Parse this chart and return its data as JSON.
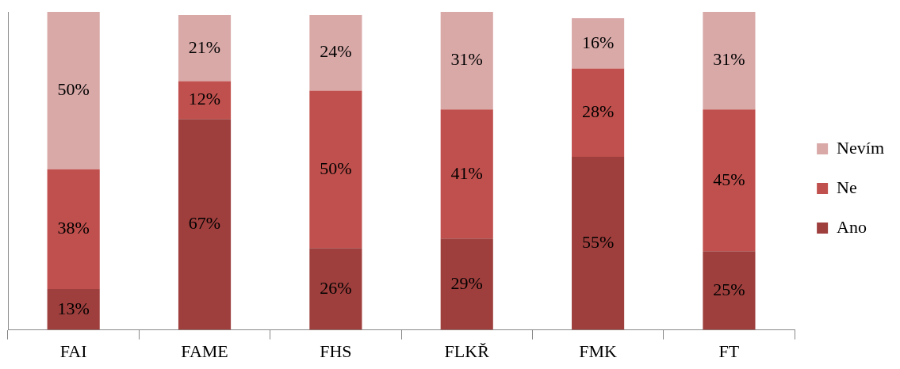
{
  "chart_data": {
    "type": "bar",
    "stacked": true,
    "categories": [
      "FAI",
      "FAME",
      "FHS",
      "FLKŘ",
      "FMK",
      "FT"
    ],
    "ylim": [
      0,
      101
    ],
    "tick_labels": "x",
    "grid": false,
    "legend": "right",
    "series": [
      {
        "name": "Ano",
        "color": "#9e3f3d",
        "values": [
          13,
          67,
          26,
          29,
          55,
          25
        ],
        "value_labels": [
          "13%",
          "67%",
          "26%",
          "29%",
          "55%",
          "25%"
        ]
      },
      {
        "name": "Ne",
        "color": "#c0504d",
        "values": [
          38,
          12,
          50,
          41,
          28,
          45
        ],
        "value_labels": [
          "38%",
          "12%",
          "50%",
          "41%",
          "28%",
          "45%"
        ]
      },
      {
        "name": "Nevím",
        "color": "#d9a9a8",
        "values": [
          50,
          21,
          24,
          31,
          16,
          31
        ],
        "value_labels": [
          "50%",
          "21%",
          "24%",
          "31%",
          "16%",
          "31%"
        ]
      }
    ]
  }
}
